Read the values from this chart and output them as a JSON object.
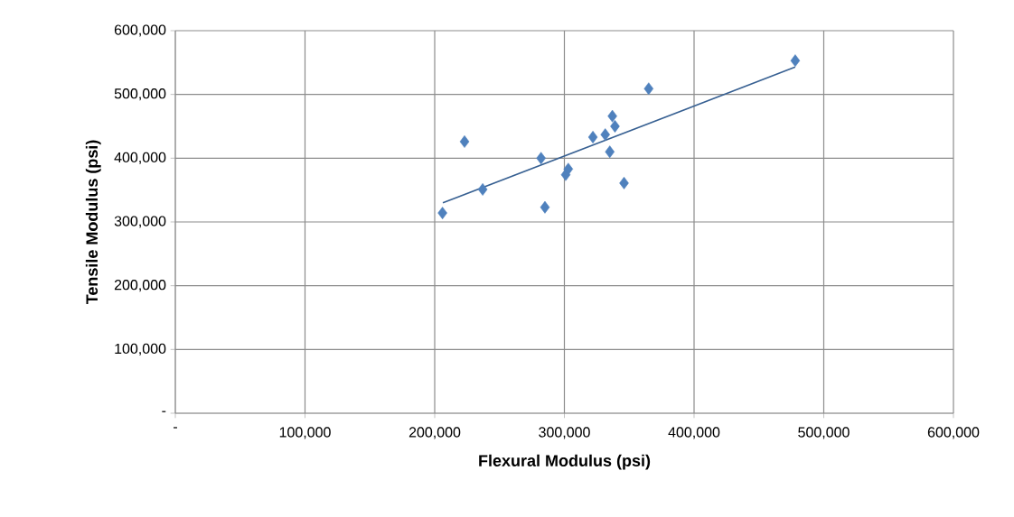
{
  "chart_data": {
    "type": "scatter",
    "xlabel": "Flexural Modulus   (psi)",
    "ylabel": "Tensile Modulus   (psi)",
    "xlim": [
      0,
      600000
    ],
    "ylim": [
      0,
      600000
    ],
    "xticks": [
      {
        "value": 0,
        "label": "-"
      },
      {
        "value": 100000,
        "label": "100,000"
      },
      {
        "value": 200000,
        "label": "200,000"
      },
      {
        "value": 300000,
        "label": "300,000"
      },
      {
        "value": 400000,
        "label": "400,000"
      },
      {
        "value": 500000,
        "label": "500,000"
      },
      {
        "value": 600000,
        "label": "600,000"
      }
    ],
    "yticks": [
      {
        "value": 0,
        "label": "-"
      },
      {
        "value": 100000,
        "label": "100,000"
      },
      {
        "value": 200000,
        "label": "200,000"
      },
      {
        "value": 300000,
        "label": "300,000"
      },
      {
        "value": 400000,
        "label": "400,000"
      },
      {
        "value": 500000,
        "label": "500,000"
      },
      {
        "value": 600000,
        "label": "600,000"
      }
    ],
    "grid": true,
    "series": [
      {
        "marker": "diamond",
        "color": "#4f81bd",
        "x": [
          206000,
          223000,
          237000,
          282000,
          285000,
          301000,
          303000,
          322000,
          331500,
          335000,
          337000,
          339000,
          346000,
          365000,
          478000
        ],
        "values": [
          314000,
          426000,
          351000,
          400000,
          323000,
          374000,
          383000,
          433000,
          437000,
          410000,
          466000,
          450000,
          361000,
          509000,
          553000
        ]
      },
      {
        "type": "line",
        "marker": "none",
        "color": "#376092",
        "x": [
          206300,
          478000
        ],
        "values": [
          330000,
          543000
        ]
      }
    ]
  }
}
